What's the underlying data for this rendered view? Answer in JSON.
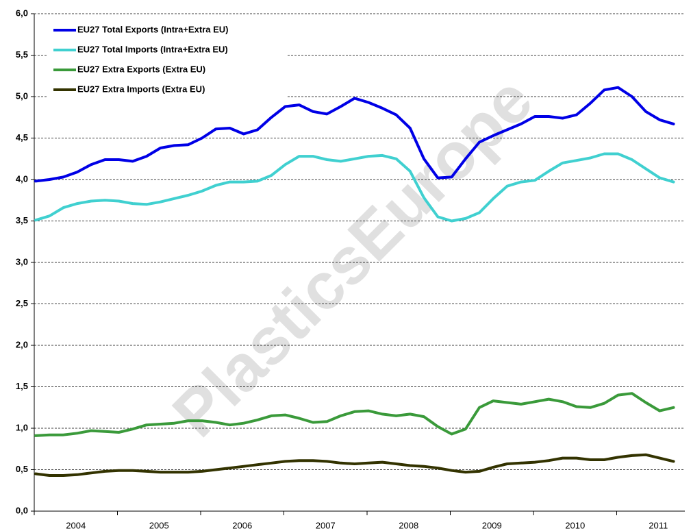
{
  "chart_data": {
    "type": "line",
    "watermark": "PlasticsEurope",
    "categories": [
      "2004",
      null,
      null,
      null,
      null,
      null,
      "2005",
      null,
      null,
      null,
      null,
      null,
      "2006",
      null,
      null,
      null,
      null,
      null,
      "2007",
      null,
      null,
      null,
      null,
      null,
      "2008",
      null,
      null,
      null,
      null,
      null,
      "2009",
      null,
      null,
      null,
      null,
      null,
      "2010",
      null,
      null,
      null,
      null,
      null,
      "2011",
      null,
      null,
      null,
      null
    ],
    "series": [
      {
        "name": "EU27 Total Exports (Intra+Extra EU)",
        "color": "#0000e6",
        "values": [
          3.98,
          4.0,
          4.03,
          4.09,
          4.18,
          4.24,
          4.24,
          4.22,
          4.28,
          4.38,
          4.41,
          4.42,
          4.5,
          4.61,
          4.62,
          4.55,
          4.6,
          4.75,
          4.88,
          4.9,
          4.82,
          4.79,
          4.88,
          4.98,
          4.93,
          4.86,
          4.78,
          4.62,
          4.25,
          4.02,
          4.03,
          4.25,
          4.45,
          4.53,
          4.6,
          4.67,
          4.76,
          4.76,
          4.74,
          4.78,
          4.92,
          5.08,
          5.11,
          5.0,
          4.82,
          4.72,
          4.67
        ]
      },
      {
        "name": "EU27 Total Imports (Intra+Extra EU)",
        "color": "#40d0d0",
        "values": [
          3.51,
          3.56,
          3.66,
          3.71,
          3.74,
          3.75,
          3.74,
          3.71,
          3.7,
          3.73,
          3.77,
          3.81,
          3.86,
          3.93,
          3.97,
          3.97,
          3.98,
          4.05,
          4.18,
          4.28,
          4.28,
          4.24,
          4.22,
          4.25,
          4.28,
          4.29,
          4.25,
          4.1,
          3.78,
          3.55,
          3.5,
          3.53,
          3.6,
          3.77,
          3.92,
          3.97,
          3.99,
          4.1,
          4.2,
          4.23,
          4.26,
          4.31,
          4.31,
          4.24,
          4.13,
          4.02,
          3.97
        ]
      },
      {
        "name": "EU27 Extra Exports (Extra EU)",
        "color": "#3a9a3a",
        "values": [
          0.91,
          0.92,
          0.92,
          0.94,
          0.97,
          0.96,
          0.95,
          0.99,
          1.04,
          1.05,
          1.06,
          1.09,
          1.09,
          1.07,
          1.04,
          1.06,
          1.1,
          1.15,
          1.16,
          1.12,
          1.07,
          1.08,
          1.15,
          1.2,
          1.21,
          1.17,
          1.15,
          1.17,
          1.14,
          1.02,
          0.93,
          0.99,
          1.25,
          1.33,
          1.31,
          1.29,
          1.32,
          1.35,
          1.32,
          1.26,
          1.25,
          1.3,
          1.4,
          1.42,
          1.31,
          1.21,
          1.25
        ]
      },
      {
        "name": "EU27 Extra Imports (Extra EU)",
        "color": "#333300",
        "values": [
          0.45,
          0.43,
          0.43,
          0.44,
          0.46,
          0.48,
          0.49,
          0.49,
          0.48,
          0.47,
          0.47,
          0.47,
          0.48,
          0.5,
          0.52,
          0.54,
          0.56,
          0.58,
          0.6,
          0.61,
          0.61,
          0.6,
          0.58,
          0.57,
          0.58,
          0.59,
          0.57,
          0.55,
          0.54,
          0.52,
          0.49,
          0.47,
          0.48,
          0.53,
          0.57,
          0.58,
          0.59,
          0.61,
          0.64,
          0.64,
          0.62,
          0.62,
          0.65,
          0.67,
          0.68,
          0.64,
          0.6
        ]
      }
    ],
    "ylim": [
      0,
      6
    ],
    "yticks": [
      {
        "value": 0,
        "label": "0,0"
      },
      {
        "value": 0.5,
        "label": "0,5"
      },
      {
        "value": 1,
        "label": "1,0"
      },
      {
        "value": 1.5,
        "label": "1,5"
      },
      {
        "value": 2,
        "label": "2,0"
      },
      {
        "value": 2.5,
        "label": "2,5"
      },
      {
        "value": 3,
        "label": "3,0"
      },
      {
        "value": 3.5,
        "label": "3,5"
      },
      {
        "value": 4,
        "label": "4,0"
      },
      {
        "value": 4.5,
        "label": "4,5"
      },
      {
        "value": 5,
        "label": "5,0"
      },
      {
        "value": 5.5,
        "label": "5,5"
      },
      {
        "value": 6,
        "label": "6,0"
      }
    ],
    "grid": true,
    "legend": "upper left"
  }
}
